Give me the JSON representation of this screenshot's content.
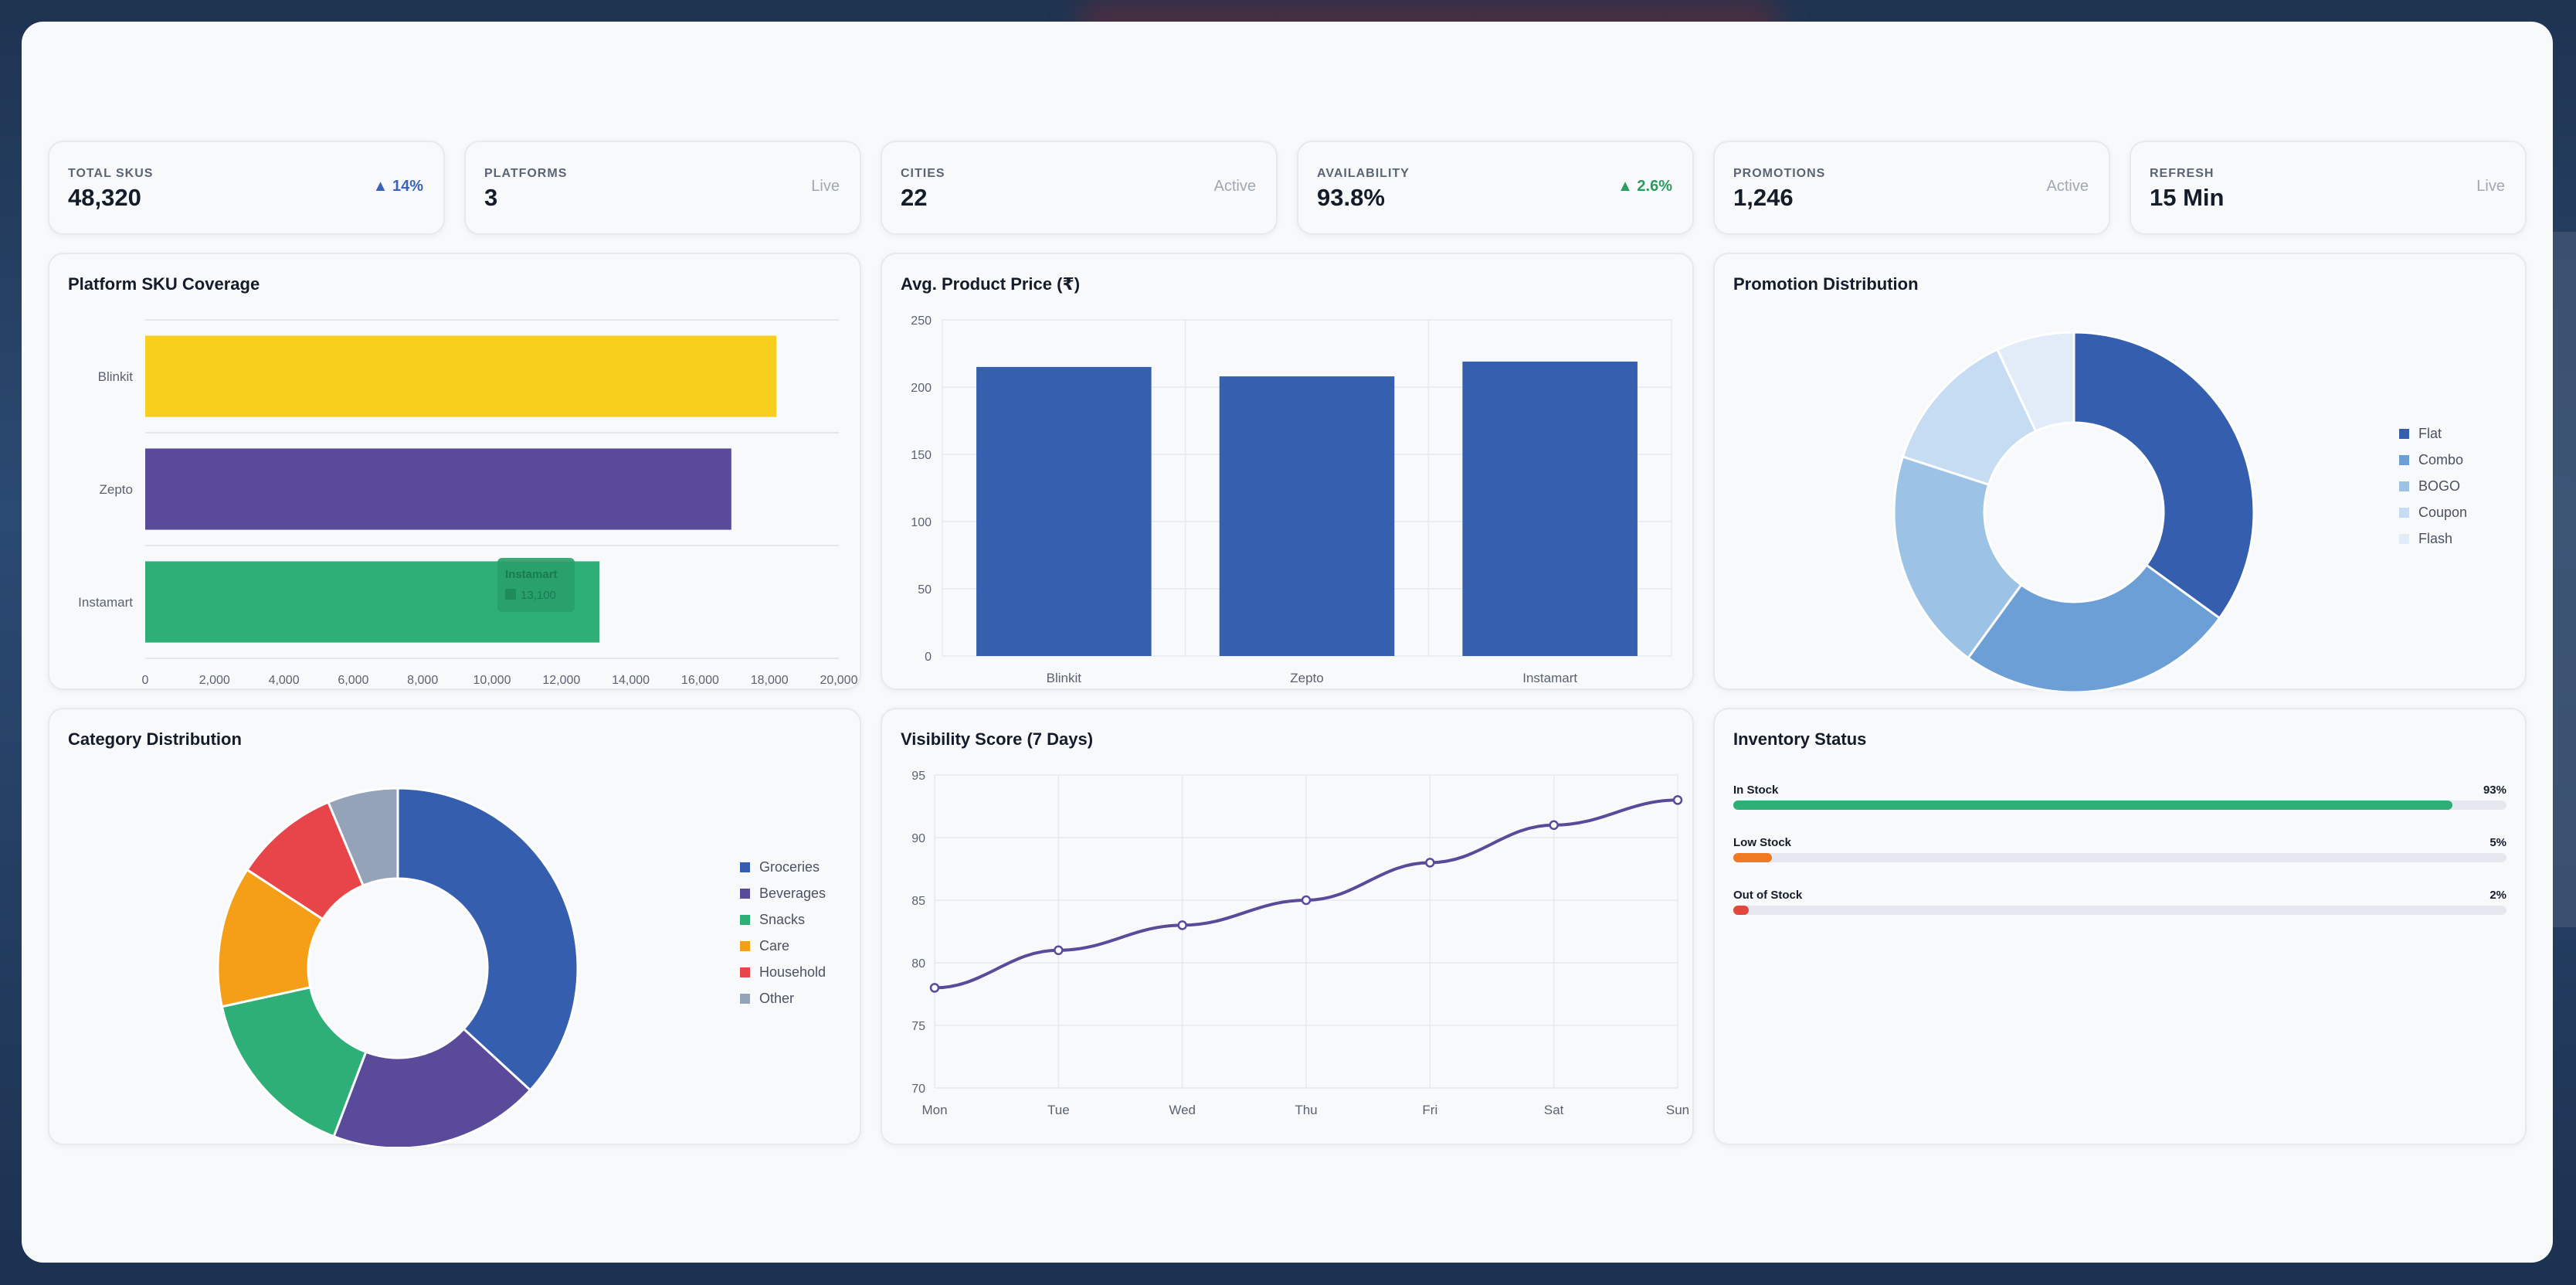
{
  "kpis": [
    {
      "label": "TOTAL SKUS",
      "value": "48,320",
      "right": "▲ 14%",
      "style": "up-blue"
    },
    {
      "label": "PLATFORMS",
      "value": "3",
      "right": "Live",
      "style": ""
    },
    {
      "label": "CITIES",
      "value": "22",
      "right": "Active",
      "style": ""
    },
    {
      "label": "AVAILABILITY",
      "value": "93.8%",
      "right": "▲ 2.6%",
      "style": "up-green"
    },
    {
      "label": "PROMOTIONS",
      "value": "1,246",
      "right": "Active",
      "style": ""
    },
    {
      "label": "REFRESH",
      "value": "15 Min",
      "right": "Live",
      "style": ""
    }
  ],
  "coverage": {
    "title": "Platform SKU Coverage",
    "tooltip": {
      "title": "Instamart",
      "value": "13,100"
    }
  },
  "price": {
    "title": "Avg. Product Price (₹)"
  },
  "promotion": {
    "title": "Promotion Distribution"
  },
  "category": {
    "title": "Category Distribution"
  },
  "visibility": {
    "title": "Visibility Score (7 Days)"
  },
  "inventory": {
    "title": "Inventory Status",
    "rows": [
      {
        "label": "In Stock",
        "pct": "93%",
        "value": 93,
        "color": "#2eaf78"
      },
      {
        "label": "Low Stock",
        "pct": "5%",
        "value": 5,
        "color": "#f07a22"
      },
      {
        "label": "Out of Stock",
        "pct": "2%",
        "value": 2,
        "color": "#e0483e"
      }
    ]
  },
  "chart_data": [
    {
      "id": "coverage",
      "type": "bar",
      "orientation": "horizontal",
      "categories": [
        "Blinkit",
        "Zepto",
        "Instamart"
      ],
      "values": [
        18200,
        16900,
        13100
      ],
      "colors": [
        "#f7ce1b",
        "#5a4a9a",
        "#2eaf78"
      ],
      "xlim": [
        0,
        20000
      ],
      "xticks": [
        "0",
        "2,000",
        "4,000",
        "6,000",
        "8,000",
        "10,000",
        "12,000",
        "14,000",
        "16,000",
        "18,000",
        "20,000"
      ]
    },
    {
      "id": "price",
      "type": "bar",
      "categories": [
        "Blinkit",
        "Zepto",
        "Instamart"
      ],
      "values": [
        215,
        208,
        219
      ],
      "color": "#365fae",
      "ylim": [
        0,
        250
      ],
      "yticks": [
        "0",
        "50",
        "100",
        "150",
        "200",
        "250"
      ]
    },
    {
      "id": "promotion",
      "type": "pie",
      "donut": true,
      "labels": [
        "Flat",
        "Combo",
        "BOGO",
        "Coupon",
        "Flash"
      ],
      "values": [
        35,
        25,
        20,
        13,
        7
      ],
      "colors": [
        "#355fae",
        "#6c9fd6",
        "#9cc3e6",
        "#c6dcf2",
        "#e2ecf8"
      ]
    },
    {
      "id": "category",
      "type": "pie",
      "donut": true,
      "labels": [
        "Groceries",
        "Beverages",
        "Snacks",
        "Care",
        "Household",
        "Other"
      ],
      "values": [
        35,
        18,
        15,
        12,
        9,
        6
      ],
      "colors": [
        "#355fae",
        "#5a4a9a",
        "#2eaf78",
        "#f59e17",
        "#e8454a",
        "#94a3b8"
      ]
    },
    {
      "id": "visibility",
      "type": "line",
      "x": [
        "Mon",
        "Tue",
        "Wed",
        "Thu",
        "Fri",
        "Sat",
        "Sun"
      ],
      "values": [
        78,
        81,
        83,
        85,
        88,
        91,
        93
      ],
      "color": "#5a4a9a",
      "ylim": [
        70,
        95
      ],
      "yticks": [
        "70",
        "75",
        "80",
        "85",
        "90",
        "95"
      ]
    }
  ]
}
